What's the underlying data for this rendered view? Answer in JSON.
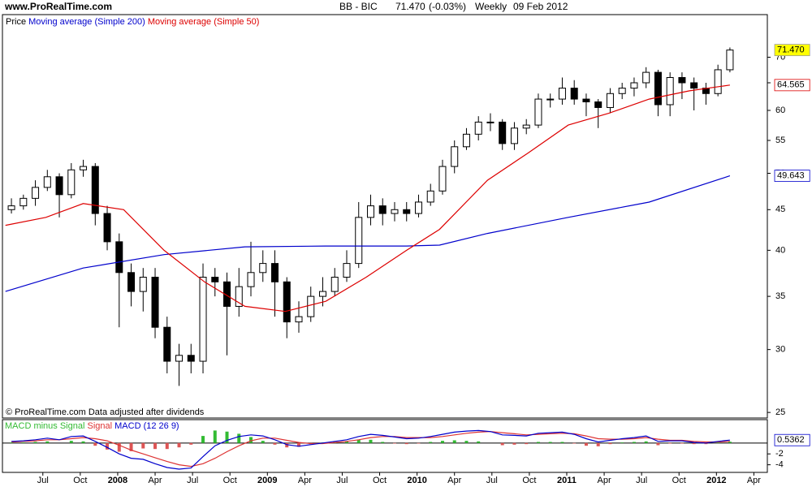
{
  "header": {
    "site": "www.ProRealTime.com",
    "instrument": "BB - BIC",
    "price": "71.470",
    "change": "(-0.03%)",
    "period": "Weekly",
    "date": "09 Feb 2012"
  },
  "footer": "© ProRealTime.com  Data adjusted after dividends",
  "chart_data": [
    {
      "type": "candlestick",
      "name": "Price",
      "log": true,
      "xlim": [
        2007.23,
        2012.34
      ],
      "ylim": [
        24.6,
        79.2
      ],
      "yticks": [
        25,
        30,
        35,
        40,
        45,
        50,
        55,
        60,
        65,
        70
      ],
      "up_color": "#ffffff",
      "down_color": "#000000",
      "last_label": "71.470",
      "last_label_color": "#ffff00",
      "x": [
        2007.29,
        2007.37,
        2007.45,
        2007.53,
        2007.61,
        2007.69,
        2007.77,
        2007.85,
        2007.93,
        2008.01,
        2008.09,
        2008.17,
        2008.25,
        2008.33,
        2008.41,
        2008.49,
        2008.57,
        2008.65,
        2008.73,
        2008.81,
        2008.89,
        2008.97,
        2009.05,
        2009.13,
        2009.21,
        2009.29,
        2009.37,
        2009.45,
        2009.53,
        2009.61,
        2009.69,
        2009.77,
        2009.85,
        2009.93,
        2010.01,
        2010.09,
        2010.17,
        2010.25,
        2010.33,
        2010.41,
        2010.49,
        2010.57,
        2010.65,
        2010.73,
        2010.81,
        2010.89,
        2010.97,
        2011.05,
        2011.13,
        2011.21,
        2011.29,
        2011.37,
        2011.45,
        2011.53,
        2011.61,
        2011.69,
        2011.77,
        2011.85,
        2011.93,
        2012.01,
        2012.09
      ],
      "open": [
        45,
        45.5,
        46.5,
        48,
        49.5,
        47,
        50.5,
        51,
        44.5,
        41,
        37.5,
        35.5,
        37,
        32,
        29,
        29.5,
        29,
        37,
        36.5,
        34,
        36,
        37.5,
        38.5,
        36.5,
        32.5,
        33,
        35,
        35.5,
        37,
        38.5,
        44,
        45.5,
        44.5,
        45,
        44.5,
        46,
        47.5,
        51,
        54,
        56,
        58,
        58,
        54.5,
        57,
        57.5,
        62,
        62,
        64,
        62,
        61.5,
        60.5,
        63,
        64,
        65,
        67,
        61,
        66,
        65,
        64,
        63,
        67.5
      ],
      "high": [
        46.5,
        47,
        49,
        50.5,
        50,
        51.5,
        52,
        51.5,
        45.5,
        42,
        38.5,
        38,
        38,
        33,
        30.5,
        30.5,
        38.5,
        38,
        37.5,
        38,
        41,
        40,
        40,
        37,
        34.5,
        36,
        37,
        38,
        40,
        46,
        47,
        46.5,
        46,
        46,
        47,
        48.5,
        52,
        55,
        57,
        59,
        59.5,
        58.5,
        58,
        58.5,
        63,
        63,
        66,
        65.5,
        63,
        62,
        64,
        65,
        66,
        68,
        67.5,
        67,
        67,
        66,
        65,
        68.5,
        72
      ],
      "low": [
        44.5,
        45,
        45.5,
        47.5,
        44,
        46.5,
        49.5,
        43,
        40,
        32,
        34,
        33.5,
        31,
        28,
        27,
        28,
        28,
        35,
        29.5,
        33,
        35,
        36.5,
        33,
        31,
        31.5,
        32.5,
        34,
        35,
        36.5,
        38,
        43,
        43,
        43.5,
        43.5,
        44,
        45.5,
        47,
        50,
        53.5,
        55,
        56.5,
        53.5,
        53.5,
        56,
        57,
        60.5,
        61,
        61,
        59,
        57,
        59.5,
        62,
        62.5,
        64,
        59,
        59,
        62,
        60,
        61,
        62.5,
        67
      ],
      "close": [
        45.5,
        46.5,
        48,
        49.5,
        47,
        50.5,
        51,
        44.5,
        41,
        37.5,
        35.5,
        37,
        32,
        29,
        29.5,
        29,
        37,
        36.5,
        34,
        36,
        37.5,
        38.5,
        36.5,
        32.5,
        33,
        35,
        35.5,
        37,
        38.5,
        44,
        45.5,
        44.5,
        45,
        44.5,
        46,
        47.5,
        51,
        54,
        56,
        58,
        58,
        54.5,
        57,
        57.5,
        62,
        62,
        64,
        62,
        61.5,
        60.5,
        63,
        64,
        65,
        67,
        61,
        66,
        65,
        64,
        63,
        67.5,
        71.47
      ],
      "series": [
        {
          "name": "Moving average (Simple 200)",
          "color": "#0000cc",
          "last_label": "49.643",
          "x": [
            2007.25,
            2007.77,
            2008.31,
            2008.85,
            2009.39,
            2009.93,
            2010.15,
            2010.47,
            2011.01,
            2011.55,
            2012.09
          ],
          "values": [
            35.5,
            38,
            39.5,
            40.4,
            40.5,
            40.5,
            40.6,
            42,
            44,
            46,
            49.643
          ]
        },
        {
          "name": "Moving average (Simple 50)",
          "color": "#dd0000",
          "last_label": "64.565",
          "x": [
            2007.25,
            2007.52,
            2007.77,
            2008.04,
            2008.31,
            2008.58,
            2008.85,
            2009.12,
            2009.39,
            2009.66,
            2009.93,
            2010.15,
            2010.47,
            2010.74,
            2011.01,
            2011.28,
            2011.55,
            2011.82,
            2012.09
          ],
          "values": [
            43,
            44,
            45.8,
            45,
            40,
            36.5,
            34,
            33.5,
            34.5,
            37,
            40,
            42.5,
            49,
            53,
            57.5,
            59.5,
            62,
            63.5,
            64.565
          ]
        }
      ]
    },
    {
      "type": "macd",
      "xlim": [
        2007.23,
        2012.34
      ],
      "ylim": [
        -5.4,
        4.3
      ],
      "yticks": [
        -4,
        -2
      ],
      "xticks": [
        {
          "value": 2007.5,
          "label": "Jul"
        },
        {
          "value": 2007.75,
          "label": "Oct"
        },
        2008,
        {
          "value": 2008.25,
          "label": "Apr"
        },
        {
          "value": 2008.5,
          "label": "Jul"
        },
        {
          "value": 2008.75,
          "label": "Oct"
        },
        2009,
        {
          "value": 2009.25,
          "label": "Apr"
        },
        {
          "value": 2009.5,
          "label": "Jul"
        },
        {
          "value": 2009.75,
          "label": "Oct"
        },
        2010,
        {
          "value": 2010.25,
          "label": "Apr"
        },
        {
          "value": 2010.5,
          "label": "Jul"
        },
        {
          "value": 2010.75,
          "label": "Oct"
        },
        2011,
        {
          "value": 2011.25,
          "label": "Apr"
        },
        {
          "value": 2011.5,
          "label": "Jul"
        },
        {
          "value": 2011.75,
          "label": "Oct"
        },
        2012,
        {
          "value": 2012.25,
          "label": "Apr"
        }
      ],
      "x": [
        2007.29,
        2007.37,
        2007.45,
        2007.53,
        2007.61,
        2007.69,
        2007.77,
        2007.85,
        2007.93,
        2008.01,
        2008.09,
        2008.17,
        2008.25,
        2008.33,
        2008.41,
        2008.49,
        2008.57,
        2008.65,
        2008.73,
        2008.81,
        2008.89,
        2008.97,
        2009.05,
        2009.13,
        2009.21,
        2009.29,
        2009.37,
        2009.45,
        2009.53,
        2009.61,
        2009.69,
        2009.77,
        2009.85,
        2009.93,
        2010.01,
        2010.09,
        2010.17,
        2010.25,
        2010.33,
        2010.41,
        2010.49,
        2010.57,
        2010.65,
        2010.73,
        2010.81,
        2010.89,
        2010.97,
        2011.05,
        2011.13,
        2011.21,
        2011.29,
        2011.37,
        2011.45,
        2011.53,
        2011.61,
        2011.69,
        2011.77,
        2011.85,
        2011.93,
        2012.01,
        2012.09
      ],
      "series": [
        {
          "name": "MACD minus Signal",
          "style": "histogram",
          "color": "#33bb33",
          "negative_color": "#dd5555",
          "values": [
            0.1,
            0.1,
            0.2,
            0.3,
            0,
            0.4,
            0.3,
            -0.5,
            -1.2,
            -1.6,
            -1.5,
            -1,
            -1.1,
            -1.1,
            -0.8,
            -0.3,
            1.3,
            2.3,
            2.1,
            1.7,
            1.1,
            0.4,
            -0.3,
            -0.8,
            -0.7,
            -0.2,
            0.1,
            0.2,
            0.3,
            0.6,
            0.6,
            0.2,
            -0.1,
            -0.2,
            -0.1,
            0.2,
            0.4,
            0.5,
            0.4,
            0.3,
            0,
            -0.4,
            -0.3,
            -0.2,
            0.2,
            0.2,
            0.2,
            -0.1,
            -0.5,
            -0.6,
            -0.2,
            0.1,
            0.2,
            0.3,
            -0.4,
            -0.1,
            -0.1,
            -0.2,
            -0.2,
            0.1,
            0.2362
          ]
        },
        {
          "name": "Signal",
          "color": "#dd3333",
          "values": [
            0.2,
            0.3,
            0.4,
            0.6,
            0.6,
            0.8,
            1,
            0.8,
            0.4,
            -0.4,
            -1.3,
            -2,
            -2.7,
            -3.4,
            -4,
            -4.3,
            -3.8,
            -2.8,
            -1.6,
            -0.5,
            0.4,
            0.9,
            0.9,
            0.5,
            0.1,
            -0.1,
            -0.1,
            0.1,
            0.3,
            0.6,
            1,
            1.2,
            1.2,
            1,
            1,
            1,
            1.2,
            1.5,
            1.8,
            2,
            2.1,
            1.9,
            1.7,
            1.5,
            1.6,
            1.7,
            1.8,
            1.7,
            1.3,
            0.8,
            0.7,
            0.7,
            0.8,
            1,
            0.7,
            0.5,
            0.5,
            0.3,
            0.2,
            0.2,
            0.3
          ]
        },
        {
          "name": "MACD (12 26 9)",
          "color": "#0000cc",
          "last_label": "0.5362",
          "values": [
            0.3,
            0.4,
            0.6,
            0.9,
            0.6,
            1.2,
            1.3,
            0.3,
            -0.8,
            -2,
            -2.8,
            -3,
            -3.8,
            -4.5,
            -4.8,
            -4.6,
            -2.5,
            -0.5,
            0.5,
            1.2,
            1.5,
            1.3,
            0.6,
            -0.3,
            -0.6,
            -0.3,
            0,
            0.3,
            0.6,
            1.2,
            1.6,
            1.4,
            1.1,
            0.8,
            0.9,
            1.2,
            1.6,
            2,
            2.2,
            2.3,
            2.1,
            1.5,
            1.4,
            1.3,
            1.8,
            1.9,
            2,
            1.6,
            0.8,
            0.2,
            0.5,
            0.8,
            1,
            1.3,
            0.3,
            0.4,
            0.4,
            0.1,
            0,
            0.3,
            0.5362
          ]
        }
      ]
    }
  ]
}
